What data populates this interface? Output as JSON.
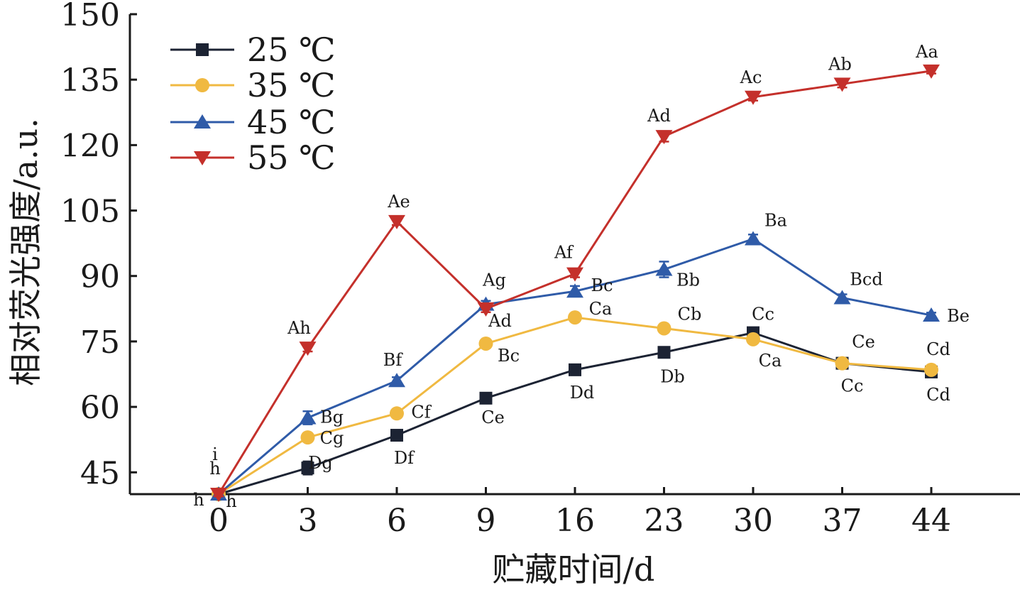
{
  "chart_data": {
    "type": "line",
    "xlabel": "贮藏时间/d",
    "ylabel": "相对荧光强度/a.u.",
    "categories": [
      "0",
      "3",
      "6",
      "9",
      "16",
      "23",
      "30",
      "37",
      "44"
    ],
    "ylim": [
      40,
      150
    ],
    "yticks": [
      45,
      60,
      75,
      90,
      105,
      120,
      135,
      150
    ],
    "legend_position": "top-left",
    "grid": false,
    "series": [
      {
        "name": "25 ℃",
        "color": "#1c2333",
        "marker": "square",
        "values": [
          40,
          46,
          53.5,
          62,
          68.5,
          72.5,
          77,
          70,
          68
        ],
        "errors": [
          0.5,
          1.5,
          0.8,
          0.7,
          0.8,
          0.8,
          1.0,
          0.8,
          0.8
        ],
        "labels": [
          "h",
          "Dg",
          "Df",
          "Ce",
          "Dd",
          "Db",
          "Cc",
          "Cc",
          "Cd"
        ]
      },
      {
        "name": "35 ℃",
        "color": "#f0b941",
        "marker": "circle",
        "values": [
          40,
          53,
          58.5,
          74.5,
          80.5,
          78,
          75.5,
          70,
          68.5
        ],
        "errors": [
          0.5,
          1.0,
          0.8,
          0.8,
          0.8,
          0.8,
          0.8,
          0.8,
          0.8
        ],
        "labels": [
          "h",
          "Cg",
          "Cf",
          "Bc",
          "Ca",
          "Cb",
          "Ca",
          "Ce",
          "Cd"
        ]
      },
      {
        "name": "45 ℃",
        "color": "#2f5ba8",
        "marker": "triangle-up",
        "values": [
          40,
          57.5,
          66,
          83.5,
          86.5,
          91.5,
          98.5,
          85,
          81
        ],
        "errors": [
          0.5,
          1.5,
          0.8,
          0.8,
          1.2,
          1.8,
          1.0,
          0.8,
          0.6
        ],
        "labels": [
          "h",
          "Bg",
          "Bf",
          "Ag",
          "Bc",
          "Bb",
          "Ba",
          "Bcd",
          "Be"
        ]
      },
      {
        "name": "55 ℃",
        "color": "#c4302b",
        "marker": "triangle-down",
        "values": [
          40,
          73.5,
          102.5,
          82.5,
          90.5,
          122,
          131,
          134,
          137
        ],
        "errors": [
          0.5,
          0.8,
          0.8,
          0.8,
          0.8,
          1.2,
          0.8,
          0.8,
          0.6
        ],
        "labels": [
          "i",
          "Ah",
          "Ae",
          "Ad",
          "Af",
          "Ad",
          "Ac",
          "Ab",
          "Aa"
        ]
      }
    ]
  }
}
